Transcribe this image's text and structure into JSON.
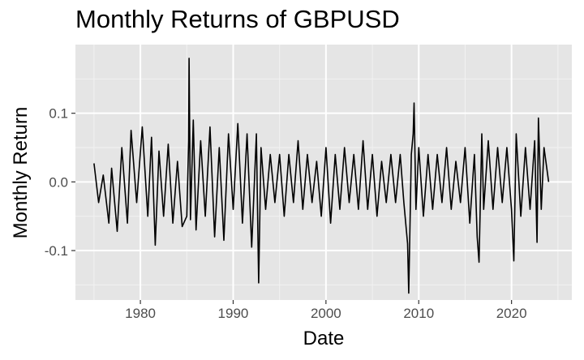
{
  "chart_data": {
    "type": "line",
    "title": "Monthly Returns of GBPUSD",
    "xlabel": "Date",
    "ylabel": "Monthly Return",
    "x_ticks": [
      "1980",
      "1990",
      "2000",
      "2010",
      "2020"
    ],
    "y_ticks": [
      "0.1",
      "0.0",
      "-0.1"
    ],
    "x_tick_values": [
      1980,
      1990,
      2000,
      2010,
      2020
    ],
    "y_tick_values": [
      0.1,
      0.0,
      -0.1
    ],
    "xlim": [
      1973,
      2026.5
    ],
    "ylim": [
      -0.172,
      0.2
    ],
    "grid": true,
    "legend": "none",
    "colors": {
      "panel": "#e5e5e5",
      "grid_major": "#ffffff",
      "grid_minor": "#f2f2f2",
      "line": "#000000"
    },
    "series": [
      {
        "x": [
          1975.0,
          1975.5,
          1976.0,
          1976.6,
          1976.9,
          1977.5,
          1978.0,
          1978.6,
          1979.0,
          1979.6,
          1980.2,
          1980.8,
          1981.2,
          1981.6,
          1982.0,
          1982.5,
          1983.0,
          1983.5,
          1984.0,
          1984.5,
          1985.0,
          1985.2,
          1985.25,
          1985.4,
          1985.7,
          1986.0,
          1986.5,
          1987.0,
          1987.5,
          1988.0,
          1988.5,
          1989.0,
          1989.5,
          1990.0,
          1990.5,
          1991.0,
          1991.5,
          1992.0,
          1992.5,
          1992.7,
          1992.75,
          1993.0,
          1993.5,
          1994.0,
          1994.5,
          1995.0,
          1995.5,
          1996.0,
          1996.5,
          1997.0,
          1997.5,
          1998.0,
          1998.5,
          1999.0,
          1999.5,
          2000.0,
          2000.5,
          2001.0,
          2001.5,
          2002.0,
          2002.5,
          2003.0,
          2003.5,
          2004.0,
          2004.5,
          2005.0,
          2005.5,
          2006.0,
          2006.5,
          2007.0,
          2007.5,
          2008.0,
          2008.4,
          2008.8,
          2008.92,
          2009.2,
          2009.4,
          2009.5,
          2009.7,
          2010.0,
          2010.5,
          2011.0,
          2011.5,
          2012.0,
          2012.5,
          2013.0,
          2013.5,
          2014.0,
          2014.5,
          2015.0,
          2015.5,
          2016.0,
          2016.3,
          2016.5,
          2016.8,
          2017.0,
          2017.5,
          2018.0,
          2018.5,
          2019.0,
          2019.5,
          2020.0,
          2020.25,
          2020.5,
          2021.0,
          2021.5,
          2022.0,
          2022.5,
          2022.75,
          2022.9,
          2023.2,
          2023.5,
          2024.0
        ],
        "y": [
          0.027,
          -0.03,
          0.01,
          -0.06,
          0.02,
          -0.072,
          0.05,
          -0.06,
          0.075,
          -0.03,
          0.08,
          -0.05,
          0.065,
          -0.092,
          0.045,
          -0.05,
          0.055,
          -0.06,
          0.03,
          -0.065,
          -0.05,
          0.06,
          0.18,
          -0.055,
          0.09,
          -0.07,
          0.06,
          -0.05,
          0.08,
          -0.08,
          0.05,
          -0.085,
          0.07,
          -0.04,
          0.085,
          -0.06,
          0.07,
          -0.095,
          0.07,
          -0.11,
          -0.147,
          0.05,
          -0.04,
          0.04,
          -0.03,
          0.04,
          -0.05,
          0.04,
          -0.03,
          0.06,
          -0.04,
          0.04,
          -0.03,
          0.03,
          -0.05,
          0.05,
          -0.06,
          0.04,
          -0.04,
          0.05,
          -0.03,
          0.04,
          -0.04,
          0.06,
          -0.04,
          0.04,
          -0.05,
          0.03,
          -0.03,
          0.04,
          -0.03,
          0.04,
          -0.03,
          -0.09,
          -0.162,
          0.04,
          0.07,
          0.115,
          -0.04,
          0.05,
          -0.05,
          0.04,
          -0.04,
          0.04,
          -0.03,
          0.05,
          -0.04,
          0.03,
          -0.03,
          0.05,
          -0.06,
          0.04,
          -0.08,
          -0.117,
          0.07,
          -0.04,
          0.06,
          -0.04,
          0.05,
          -0.03,
          0.05,
          -0.04,
          -0.115,
          0.07,
          -0.05,
          0.05,
          -0.04,
          0.06,
          -0.088,
          0.093,
          -0.04,
          0.05,
          0.0
        ]
      }
    ]
  }
}
